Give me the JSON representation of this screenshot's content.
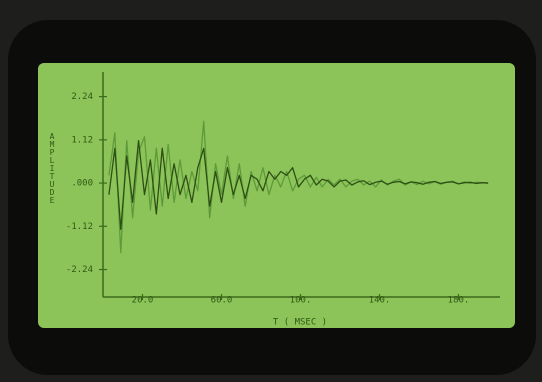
{
  "chart_data": {
    "type": "line",
    "y_label": "AMPLITUDE",
    "x_label": "T ( MSEC )",
    "x": [
      3,
      6,
      9,
      12,
      15,
      18,
      21,
      24,
      27,
      30,
      33,
      36,
      39,
      42,
      45,
      48,
      51,
      54,
      57,
      60,
      63,
      66,
      69,
      72,
      75,
      78,
      81,
      84,
      87,
      90,
      93,
      96,
      99,
      102,
      105,
      108,
      111,
      114,
      117,
      120,
      123,
      126,
      129,
      132,
      135,
      138,
      141,
      144,
      147,
      150,
      153,
      156,
      159,
      162,
      165,
      168,
      171,
      174,
      177,
      180,
      183,
      186,
      189,
      192,
      195
    ],
    "series": [
      {
        "color": "#5f9a3a",
        "values": [
          0.2,
          1.3,
          -1.8,
          1.1,
          -0.9,
          0.8,
          1.2,
          -0.7,
          0.9,
          -0.6,
          1.0,
          -0.5,
          0.6,
          -0.4,
          0.3,
          -0.2,
          1.6,
          -0.9,
          0.5,
          -0.3,
          0.7,
          -0.4,
          0.5,
          -0.6,
          0.3,
          -0.2,
          0.4,
          -0.3,
          0.2,
          -0.1,
          0.3,
          -0.2,
          0.1,
          0.2,
          -0.1,
          0.15,
          -0.1,
          0.1,
          -0.05,
          0.1,
          -0.1,
          0.05,
          0.1,
          -0.05,
          0.05,
          -0.1,
          0.08,
          -0.05,
          0.05,
          0.1,
          -0.05,
          0.03,
          -0.04,
          0.05,
          -0.02,
          0.04,
          -0.03,
          0.02,
          0.05,
          -0.02,
          0.03,
          -0.01,
          0.02,
          0.01,
          0.0
        ]
      },
      {
        "color": "#2e4f14",
        "values": [
          -0.3,
          0.9,
          -1.2,
          0.7,
          -0.5,
          1.1,
          -0.3,
          0.6,
          -0.8,
          0.9,
          -0.4,
          0.5,
          -0.3,
          0.2,
          -0.5,
          0.4,
          0.9,
          -0.6,
          0.3,
          -0.5,
          0.4,
          -0.3,
          0.2,
          -0.4,
          0.2,
          0.1,
          -0.2,
          0.3,
          0.1,
          0.3,
          0.2,
          0.4,
          -0.1,
          0.1,
          0.2,
          -0.05,
          0.1,
          0.05,
          -0.1,
          0.05,
          0.08,
          -0.05,
          0.03,
          0.06,
          -0.04,
          0.02,
          0.05,
          -0.03,
          0.02,
          0.04,
          -0.02,
          0.03,
          0.01,
          -0.03,
          0.02,
          0.04,
          -0.01,
          0.02,
          0.03,
          -0.02,
          0.01,
          0.02,
          -0.01,
          0.01,
          0.0
        ]
      }
    ],
    "xlim": [
      0,
      200
    ],
    "ylim": [
      -2.9,
      2.8
    ],
    "xticks": [
      {
        "value": 20,
        "label": "20.0"
      },
      {
        "value": 60,
        "label": "60.0"
      },
      {
        "value": 100,
        "label": "100."
      },
      {
        "value": 140,
        "label": "140."
      },
      {
        "value": 180,
        "label": "180."
      }
    ],
    "yticks": [
      2.24,
      1.12,
      {
        "value": 0,
        "label": ".000"
      },
      -1.12,
      -2.24
    ]
  }
}
